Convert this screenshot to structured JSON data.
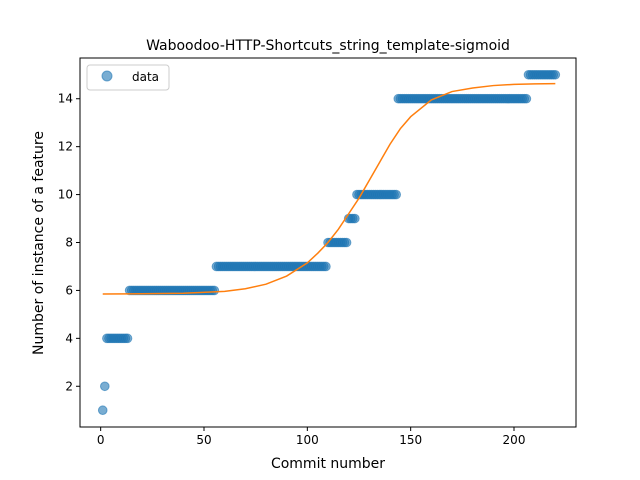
{
  "chart_data": {
    "type": "scatter",
    "title": "Waboodoo-HTTP-Shortcuts_string_template-sigmoid",
    "xlabel": "Commit number",
    "ylabel": "Number of instance of a feature",
    "xlim": [
      -10,
      230
    ],
    "ylim": [
      0.3,
      15.7
    ],
    "xticks": [
      0,
      50,
      100,
      150,
      200
    ],
    "yticks": [
      2,
      4,
      6,
      8,
      10,
      12,
      14
    ],
    "grid": false,
    "legend": {
      "placement": "top-left",
      "entries": [
        "data"
      ]
    },
    "colors": {
      "data": "#1f77b4",
      "fit": "#ff7f0e"
    },
    "series": [
      {
        "name": "data",
        "kind": "points",
        "segments": [
          {
            "x_from": 1,
            "x_to": 1,
            "y": 1
          },
          {
            "x_from": 2,
            "x_to": 2,
            "y": 2
          },
          {
            "x_from": 3,
            "x_to": 13,
            "y": 4
          },
          {
            "x_from": 14,
            "x_to": 55,
            "y": 6
          },
          {
            "x_from": 56,
            "x_to": 109,
            "y": 7
          },
          {
            "x_from": 110,
            "x_to": 119,
            "y": 8
          },
          {
            "x_from": 120,
            "x_to": 123,
            "y": 9
          },
          {
            "x_from": 124,
            "x_to": 143,
            "y": 10
          },
          {
            "x_from": 144,
            "x_to": 206,
            "y": 14
          },
          {
            "x_from": 207,
            "x_to": 220,
            "y": 15
          }
        ]
      },
      {
        "name": "sigmoid fit",
        "kind": "line",
        "x": [
          1,
          20,
          40,
          60,
          70,
          80,
          90,
          100,
          105,
          110,
          115,
          120,
          125,
          130,
          135,
          140,
          145,
          150,
          160,
          170,
          180,
          190,
          200,
          210,
          220
        ],
        "y": [
          5.85,
          5.86,
          5.88,
          5.96,
          6.07,
          6.26,
          6.6,
          7.15,
          7.55,
          8.0,
          8.55,
          9.2,
          9.85,
          10.6,
          11.35,
          12.1,
          12.75,
          13.25,
          13.95,
          14.3,
          14.45,
          14.55,
          14.6,
          14.62,
          14.63
        ]
      }
    ]
  }
}
